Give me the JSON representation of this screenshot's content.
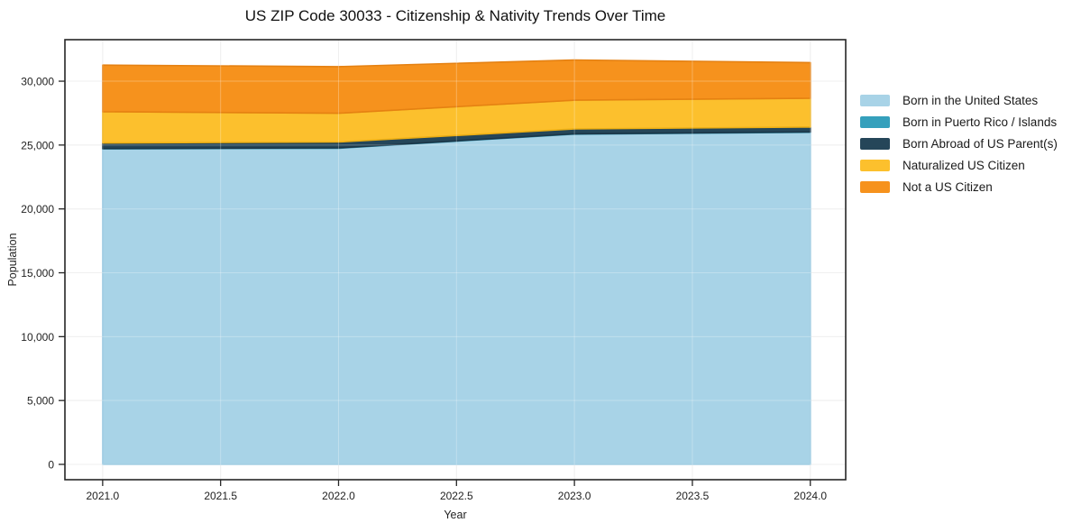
{
  "title": "US ZIP Code 30033 - Citizenship & Nativity Trends Over Time",
  "chart_data": {
    "type": "area",
    "stacked": true,
    "title": "US ZIP Code 30033 - Citizenship & Nativity Trends Over Time",
    "xlabel": "Year",
    "ylabel": "Population",
    "x": [
      2021,
      2022,
      2023,
      2024
    ],
    "series": [
      {
        "name": "Born in the United States",
        "values": [
          24700,
          24750,
          25850,
          26000
        ],
        "color": "#a8d3e7",
        "edge": "#8fc4de"
      },
      {
        "name": "Born in Puerto Rico / Islands",
        "values": [
          30,
          30,
          30,
          30
        ],
        "color": "#35a0bc",
        "edge": "#2c89a2"
      },
      {
        "name": "Born Abroad of US Parent(s)",
        "values": [
          430,
          460,
          380,
          380
        ],
        "color": "#254659",
        "edge": "#1b3648"
      },
      {
        "name": "Naturalized US Citizen",
        "values": [
          2450,
          2250,
          2250,
          2250
        ],
        "color": "#fcc02d",
        "edge": "#edaf14"
      },
      {
        "name": "Not a US Citizen",
        "values": [
          3650,
          3650,
          3150,
          2800
        ],
        "color": "#f6921d",
        "edge": "#e58112"
      }
    ],
    "x_tick_values": [
      2021,
      2021.5,
      2022,
      2022.5,
      2023,
      2023.5,
      2024
    ],
    "x_tick_labels": [
      "2021.0",
      "2021.5",
      "2022.0",
      "2022.5",
      "2023.0",
      "2023.5",
      "2024.0"
    ],
    "y_tick_values": [
      0,
      5000,
      10000,
      15000,
      20000,
      25000,
      30000
    ],
    "y_tick_labels": [
      "0",
      "5,000",
      "10,000",
      "15,000",
      "20,000",
      "25,000",
      "30,000"
    ],
    "xlim": [
      2020.84,
      2024.15
    ],
    "ylim": [
      -1200,
      33250
    ],
    "grid": true,
    "legend_position": "right outside"
  }
}
